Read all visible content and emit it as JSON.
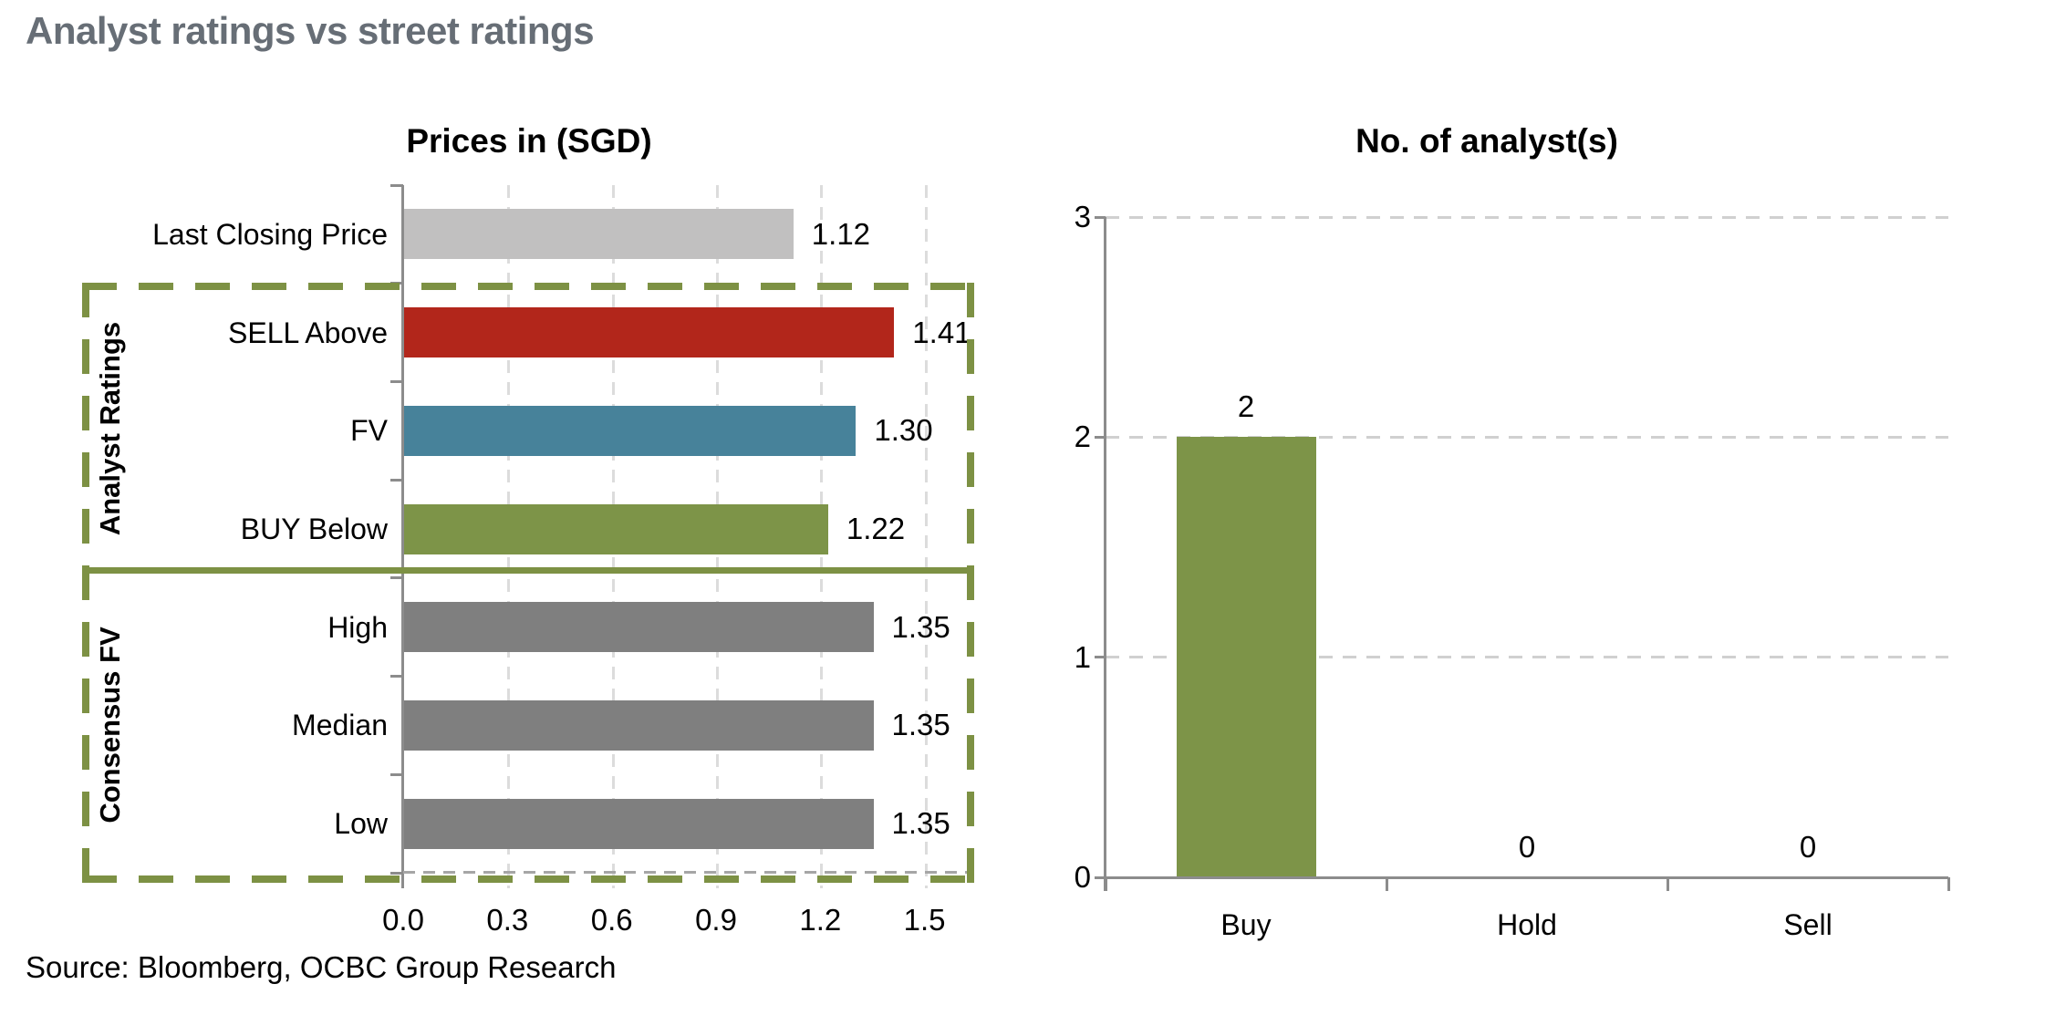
{
  "page_title": "Analyst ratings vs street ratings",
  "source": "Source: Bloomberg, OCBC Group Research",
  "colors": {
    "title_gray": "#676e76",
    "bar_light_gray": "#c1c0c0",
    "bar_red": "#b2261b",
    "bar_blue": "#47829a",
    "bar_olive": "#7d9448",
    "bar_gray": "#7f7f7f",
    "outline_green": "#7d9144",
    "grid_gray": "#dcdcdc",
    "grid_gray_right": "#d0d0d0",
    "baseline_gray": "#a6a6a6",
    "axis_gray": "#8c8c8c"
  },
  "chart_data": [
    {
      "type": "bar",
      "orientation": "horizontal",
      "title": "Prices in (SGD)",
      "categories": [
        "Last Closing Price",
        "SELL Above",
        "FV",
        "BUY Below",
        "High",
        "Median",
        "Low"
      ],
      "values": [
        1.12,
        1.41,
        1.3,
        1.22,
        1.35,
        1.35,
        1.35
      ],
      "value_labels": [
        "1.12",
        "1.41",
        "1.30",
        "1.22",
        "1.35",
        "1.35",
        "1.35"
      ],
      "bar_colors": [
        "#c1c0c0",
        "#b2261b",
        "#47829a",
        "#7d9448",
        "#7f7f7f",
        "#7f7f7f",
        "#7f7f7f"
      ],
      "x_ticks": [
        "0.0",
        "0.3",
        "0.6",
        "0.9",
        "1.2",
        "1.5"
      ],
      "x_tick_values": [
        0,
        0.3,
        0.6,
        0.9,
        1.2,
        1.5
      ],
      "xlim": [
        0,
        1.64
      ],
      "grid": "vertical-dashed",
      "legend": "none",
      "groups": [
        {
          "label": "Analyst Ratings",
          "rows": [
            1,
            2,
            3
          ]
        },
        {
          "label": "Consensus FV",
          "rows": [
            4,
            5,
            6
          ]
        }
      ]
    },
    {
      "type": "bar",
      "orientation": "vertical",
      "title": "No. of analyst(s)",
      "categories": [
        "Buy",
        "Hold",
        "Sell"
      ],
      "values": [
        2,
        0,
        0
      ],
      "value_labels": [
        "2",
        "0",
        "0"
      ],
      "bar_color": "#7d9448",
      "y_ticks": [
        "0",
        "1",
        "2",
        "3"
      ],
      "y_tick_values": [
        0,
        1,
        2,
        3
      ],
      "ylim": [
        0,
        3
      ],
      "grid": "horizontal-dashed",
      "legend": "none"
    }
  ]
}
